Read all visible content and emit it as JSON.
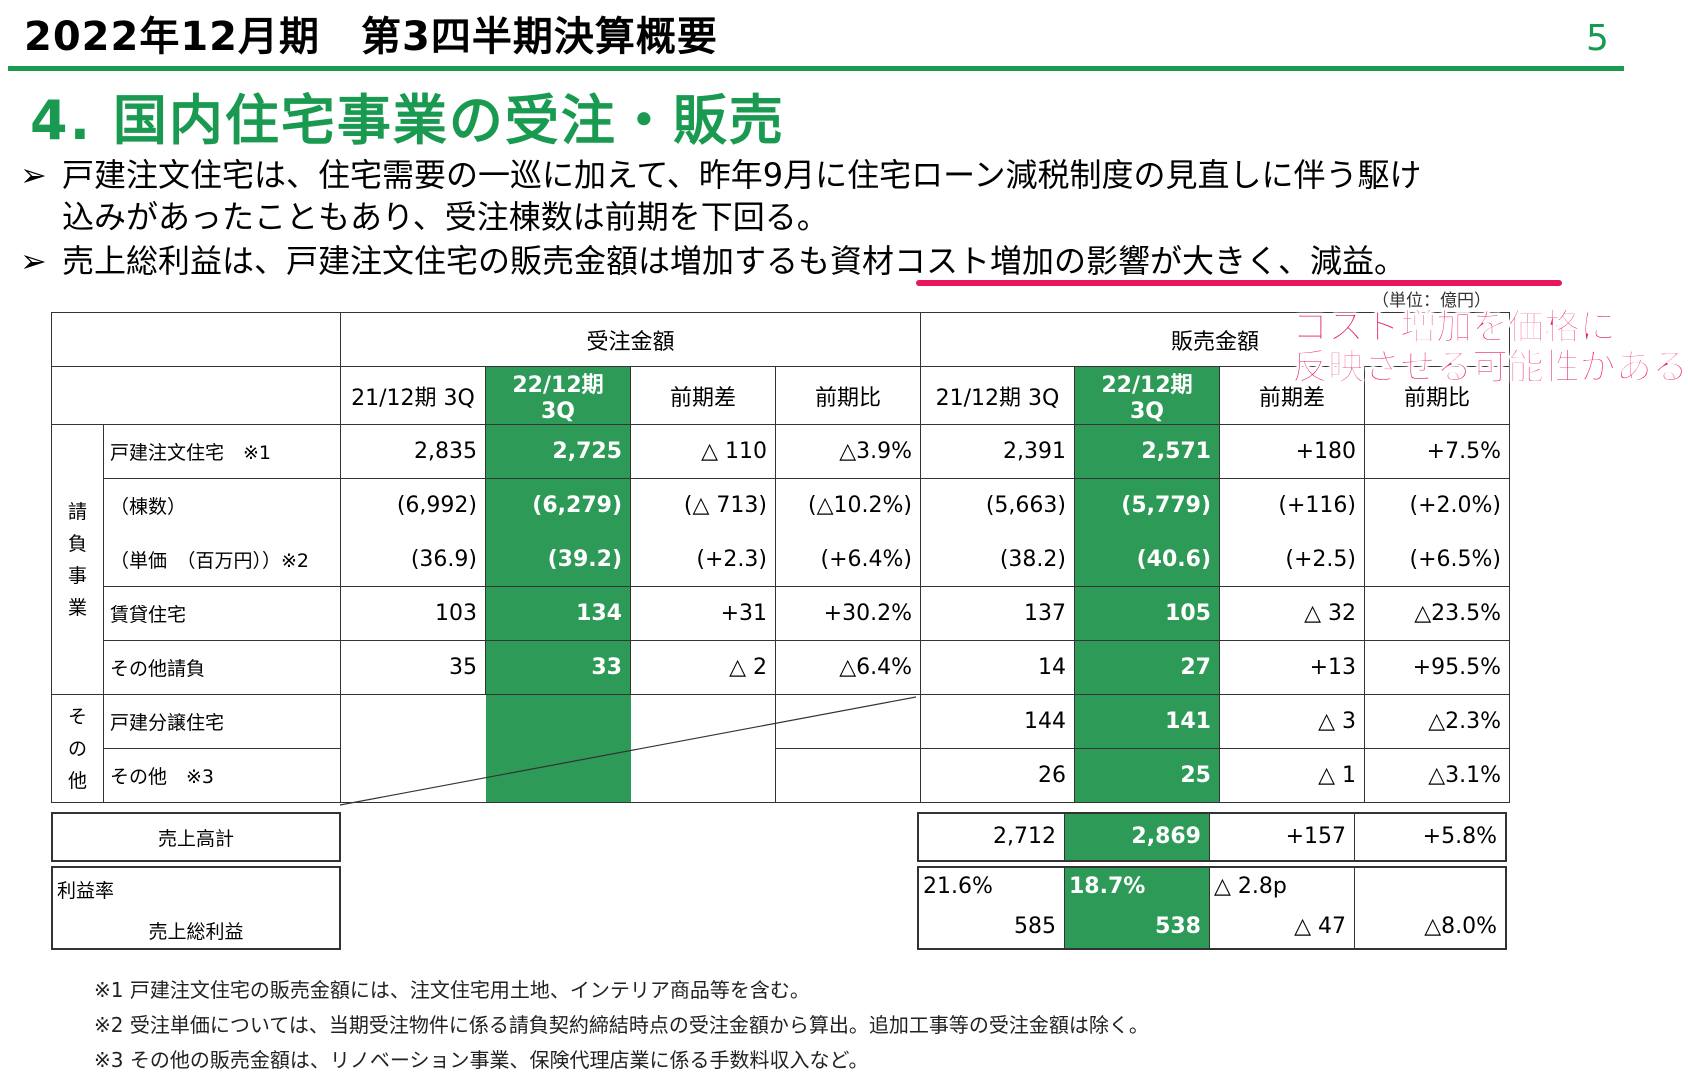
{
  "header": {
    "title": "2022年12月期　第3四半期決算概要",
    "page_number": "5"
  },
  "heading": "4. 国内住宅事業の受注・販売",
  "bullets": [
    {
      "mark": "➢",
      "line1": "戸建注文住宅は、住宅需要の一巡に加えて、昨年9月に住宅ローン減税制度の見直しに伴う駆け",
      "line2": "込みがあったこともあり、受注棟数は前期を下回る。"
    },
    {
      "mark": "➢",
      "line1": "売上総利益は、戸建注文住宅の販売金額は増加するも資材コスト増加の影響が大きく、減益。"
    }
  ],
  "unit_label": "（単位：億円）",
  "annotation": {
    "line1": "コスト増加を価格に",
    "line2": "反映させる可能性がある"
  },
  "table": {
    "group_headers": {
      "orders": "受注金額",
      "sales": "販売金額"
    },
    "col_headers": [
      "21/12期 3Q",
      "22/12期 3Q",
      "前期差",
      "前期比",
      "21/12期 3Q",
      "22/12期 3Q",
      "前期差",
      "前期比"
    ],
    "section_ukeoi": "請\n負\n事\n業",
    "section_other": "そ\nの\n他",
    "rows": [
      {
        "label": "戸建注文住宅　※1",
        "values": [
          "2,835",
          "2,725",
          "△ 110",
          "△3.9%",
          "2,391",
          "2,571",
          "+180",
          "+7.5%"
        ]
      },
      {
        "label": "（棟数）",
        "values": [
          "(6,992)",
          "(6,279)",
          "(△ 713)",
          "(△10.2%)",
          "(5,663)",
          "(5,779)",
          "(+116)",
          "(+2.0%)"
        ]
      },
      {
        "label": "（単価　（百万円））※2",
        "values": [
          "(36.9)",
          "(39.2)",
          "(+2.3)",
          "(+6.4%)",
          "(38.2)",
          "(40.6)",
          "(+2.5)",
          "(+6.5%)"
        ]
      },
      {
        "label": "賃貸住宅",
        "values": [
          "103",
          "134",
          "+31",
          "+30.2%",
          "137",
          "105",
          "△ 32",
          "△23.5%"
        ]
      },
      {
        "label": "その他請負",
        "values": [
          "35",
          "33",
          "△ 2",
          "△6.4%",
          "14",
          "27",
          "+13",
          "+95.5%"
        ]
      },
      {
        "label": "戸建分譲住宅",
        "values": [
          "",
          "",
          "",
          "",
          "144",
          "141",
          "△ 3",
          "△2.3%"
        ]
      },
      {
        "label": "その他　※3",
        "values": [
          "",
          "",
          "",
          "",
          "26",
          "25",
          "△ 1",
          "△3.1%"
        ]
      }
    ],
    "total": {
      "label": "売上高計",
      "values": [
        "2,712",
        "2,869",
        "+157",
        "+5.8%"
      ]
    },
    "profit": {
      "rate_label": "利益率",
      "label": "売上総利益",
      "rate_values": [
        "21.6%",
        "18.7%",
        "△ 2.8p"
      ],
      "values": [
        "585",
        "538",
        "△ 47",
        "△8.0%"
      ]
    }
  },
  "notes": [
    "※1 戸建注文住宅の販売金額には、注文住宅用土地、インテリア商品等を含む。",
    "※2 受注単価については、当期受注物件に係る請負契約締結時点の受注金額から算出。追加工事等の受注金額は除く。",
    "※3 その他の販売金額は、リノベーション事業、保険代理店業に係る手数料収入など。"
  ],
  "colors": {
    "accent_green": "#1a9a50",
    "highlight_green": "#2e9a57",
    "pink": "#e8175d"
  }
}
